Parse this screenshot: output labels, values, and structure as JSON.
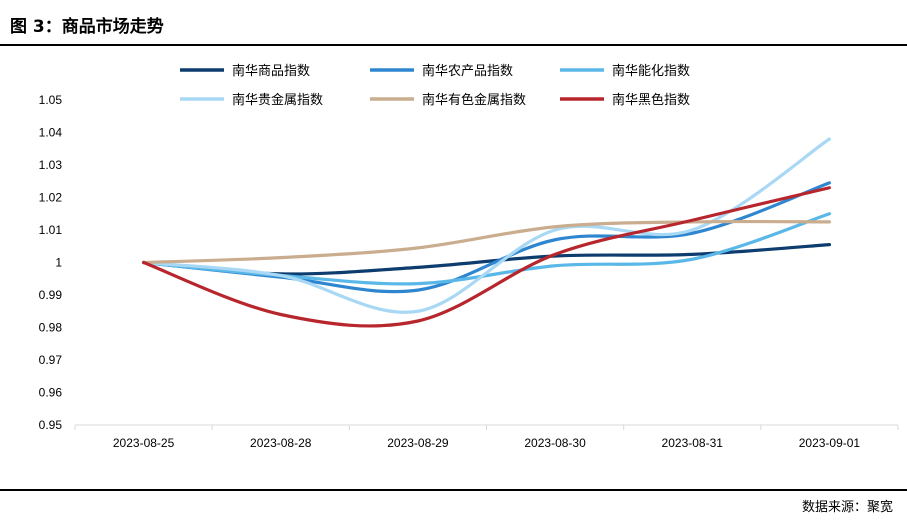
{
  "header": {
    "title": "图 3：商品市场走势"
  },
  "footer": {
    "source": "数据来源：聚宽"
  },
  "chart_data": {
    "type": "line",
    "title": "",
    "xlabel": "",
    "ylabel": "",
    "categories": [
      "2023-08-25",
      "2023-08-28",
      "2023-08-29",
      "2023-08-30",
      "2023-08-31",
      "2023-09-01"
    ],
    "ylim": [
      0.95,
      1.05
    ],
    "yticks": [
      "0.95",
      "0.96",
      "0.97",
      "0.98",
      "0.99",
      "1",
      "1.01",
      "1.02",
      "1.03",
      "1.04",
      "1.05"
    ],
    "grid": false,
    "legend_position": "top",
    "series": [
      {
        "name": "南华商品指数",
        "color": "#0d3c6e",
        "values": [
          1.0,
          0.9965,
          0.9985,
          1.002,
          1.0025,
          1.0055
        ]
      },
      {
        "name": "南华农产品指数",
        "color": "#2e86d0",
        "values": [
          1.0,
          0.9955,
          0.9915,
          1.007,
          1.009,
          1.0245
        ]
      },
      {
        "name": "南华能化指数",
        "color": "#5ab8e8",
        "values": [
          1.0,
          0.996,
          0.9935,
          0.999,
          1.001,
          1.015
        ]
      },
      {
        "name": "南华贵金属指数",
        "color": "#a8d8f4",
        "values": [
          1.0,
          0.996,
          0.985,
          1.01,
          1.01,
          1.038
        ]
      },
      {
        "name": "南华有色金属指数",
        "color": "#c9ad8e",
        "values": [
          1.0,
          1.0015,
          1.0045,
          1.011,
          1.0125,
          1.0125
        ]
      },
      {
        "name": "南华黑色指数",
        "color": "#b8262d",
        "values": [
          1.0,
          0.984,
          0.982,
          1.0025,
          1.013,
          1.023
        ]
      }
    ]
  }
}
